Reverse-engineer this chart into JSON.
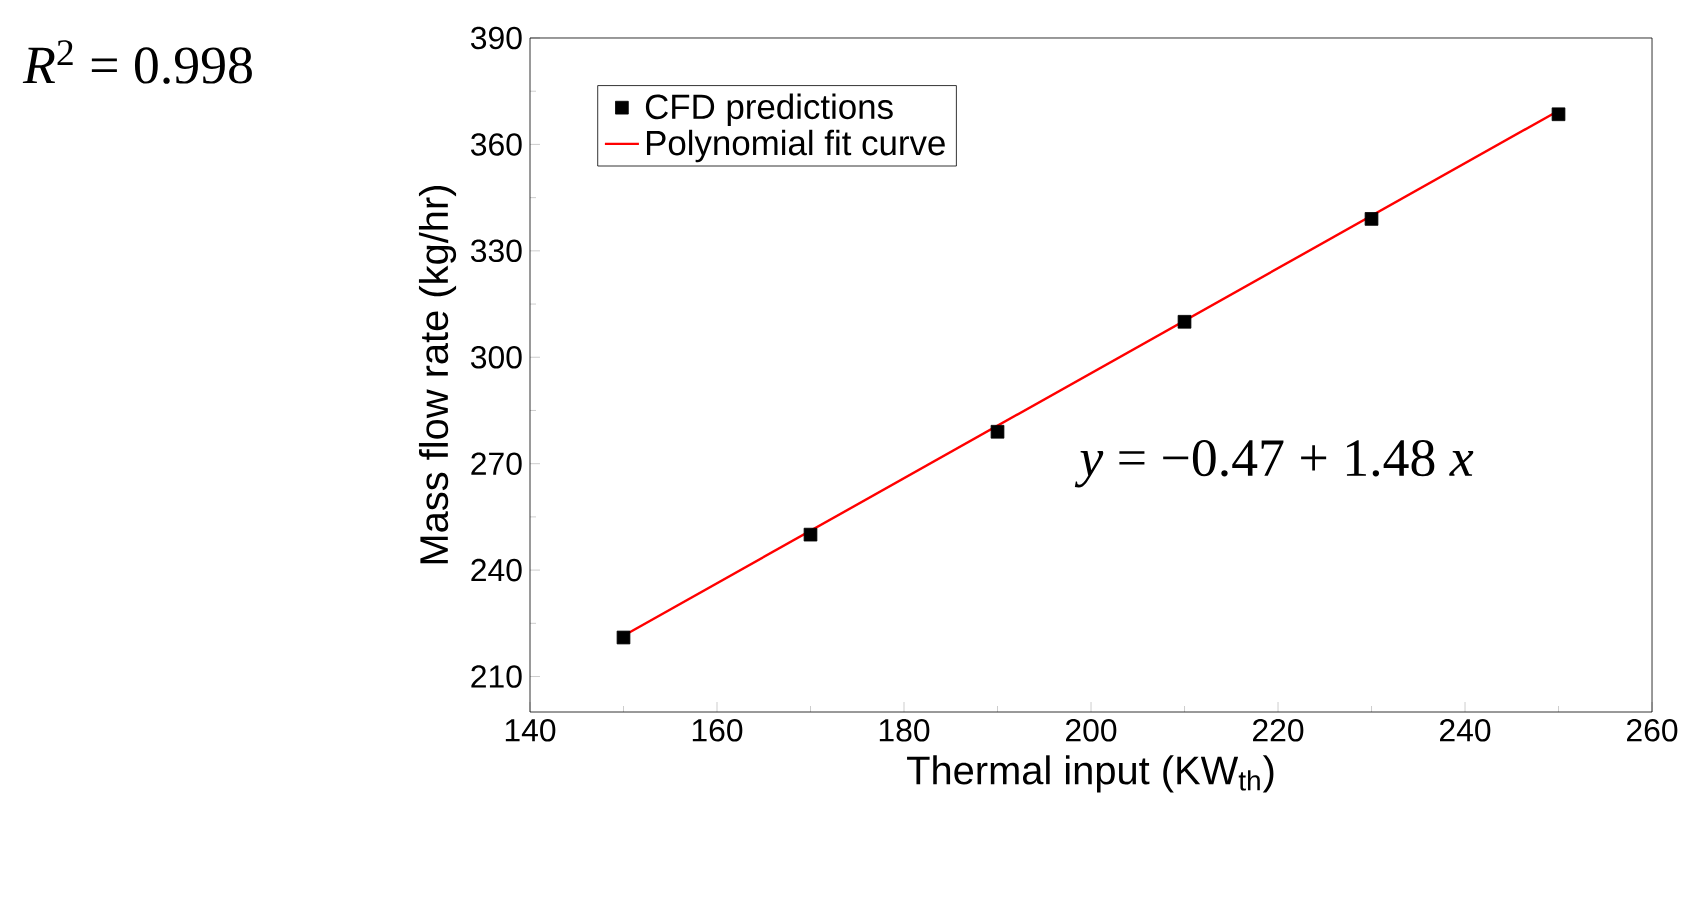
{
  "chart_data": {
    "type": "scatter",
    "xlabel": "Thermal input (KW$_{th}$)",
    "ylabel": "Mass flow rate (kg/hr)",
    "series": [
      {
        "name": "CFD predictions",
        "color": "#000000",
        "marker": "square",
        "x": [
          150,
          170,
          190,
          210,
          230,
          250
        ],
        "values": [
          221,
          250,
          279,
          310,
          339,
          368.5
        ]
      },
      {
        "name": "Polynomial fit curve",
        "type": "line",
        "color": "#ff0000",
        "marker": "none",
        "line_style": "solid",
        "x": [
          150,
          250
        ],
        "values": [
          221.5,
          369.5
        ]
      }
    ],
    "xlim": [
      140,
      260
    ],
    "xticks": [
      140,
      160,
      180,
      200,
      220,
      240,
      260
    ],
    "ylim": [
      200,
      390
    ],
    "yticks": [
      210,
      240,
      270,
      300,
      330,
      360,
      390
    ],
    "legend": "top left",
    "grid": false,
    "annotations": [
      "*R*$^{2}$ = 0.998",
      "*y* = −0.47 + 1.48 *x*"
    ]
  }
}
